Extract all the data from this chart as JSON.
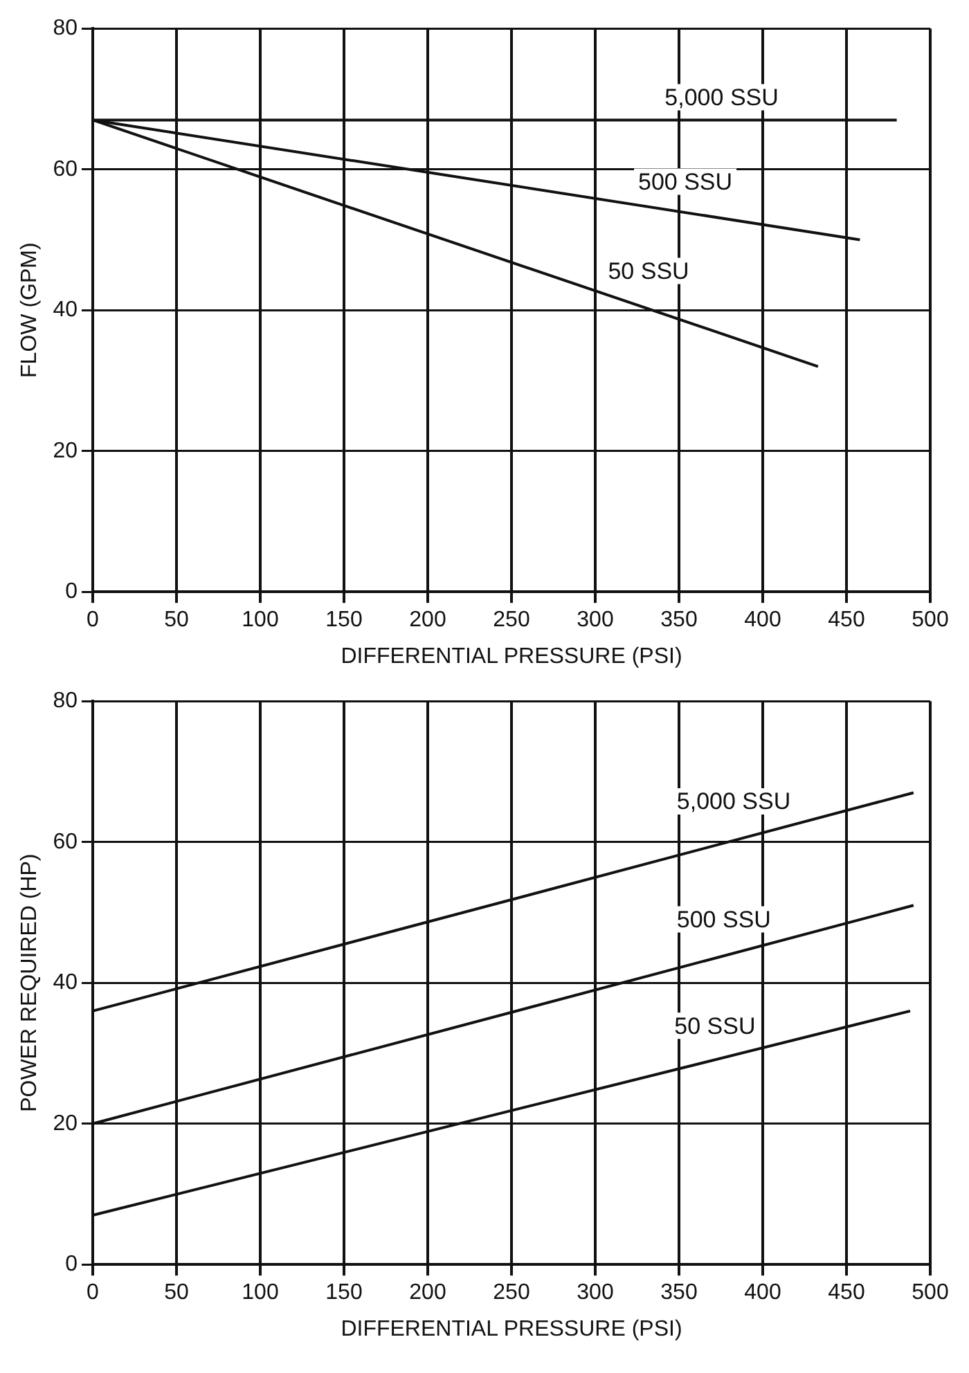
{
  "chart_data": [
    {
      "type": "line",
      "xlabel": "DIFFERENTIAL PRESSURE (PSI)",
      "ylabel": "FLOW (GPM)",
      "xlim": [
        0,
        500
      ],
      "xticks": [
        0,
        50,
        100,
        150,
        200,
        250,
        300,
        350,
        400,
        450,
        500
      ],
      "ylim": [
        0,
        80
      ],
      "yticks": [
        0,
        20,
        40,
        60,
        80
      ],
      "grid": true,
      "marker": "none",
      "line_style": "solid",
      "legend": false,
      "series": [
        {
          "name": "5,000 SSU",
          "color": "#111111",
          "x": [
            0,
            480
          ],
          "values": [
            67,
            67
          ]
        },
        {
          "name": "500 SSU",
          "color": "#111111",
          "x": [
            0,
            458
          ],
          "values": [
            67,
            50
          ]
        },
        {
          "name": "50 SSU",
          "color": "#111111",
          "x": [
            0,
            433
          ],
          "values": [
            67,
            32
          ]
        }
      ]
    },
    {
      "type": "line",
      "xlabel": "DIFFERENTIAL PRESSURE (PSI)",
      "ylabel": "POWER REQUIRED (HP)",
      "xlim": [
        0,
        500
      ],
      "xticks": [
        0,
        50,
        100,
        150,
        200,
        250,
        300,
        350,
        400,
        450,
        500
      ],
      "ylim": [
        0,
        80
      ],
      "yticks": [
        0,
        20,
        40,
        60,
        80
      ],
      "grid": true,
      "marker": "none",
      "line_style": "solid",
      "legend": false,
      "series": [
        {
          "name": "5,000 SSU",
          "color": "#111111",
          "x": [
            0,
            490
          ],
          "values": [
            36,
            67
          ]
        },
        {
          "name": "500 SSU",
          "color": "#111111",
          "x": [
            0,
            490
          ],
          "values": [
            20,
            51
          ]
        },
        {
          "name": "50 SSU",
          "color": "#111111",
          "x": [
            0,
            488
          ],
          "values": [
            7,
            36
          ]
        }
      ]
    }
  ]
}
